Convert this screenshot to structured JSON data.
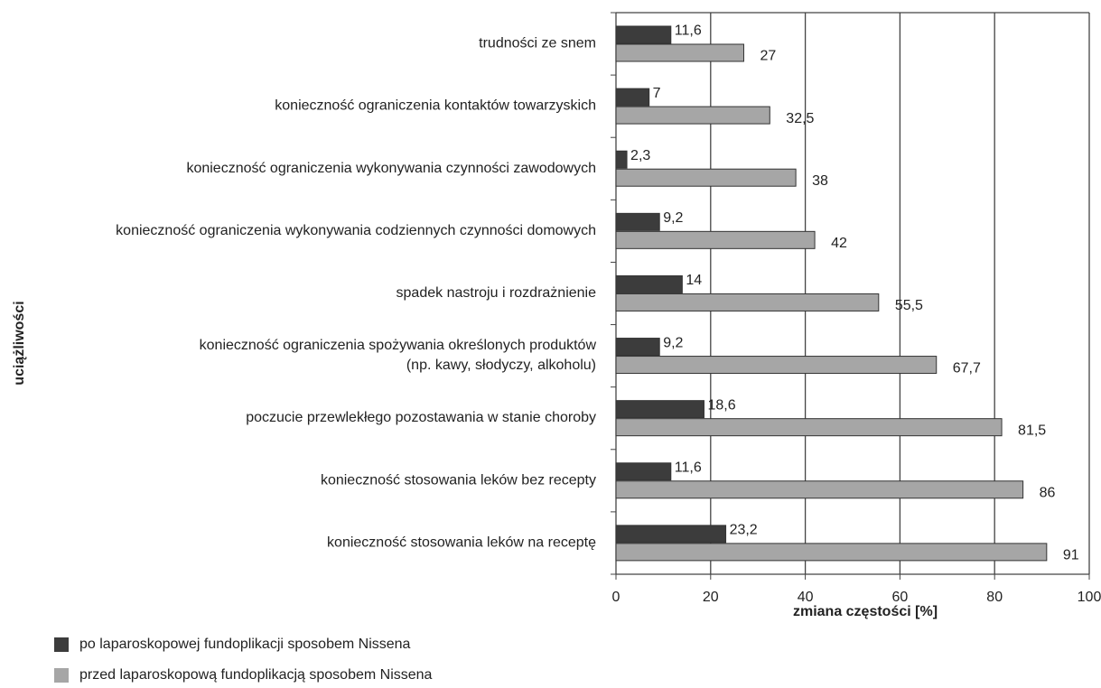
{
  "chart_data": {
    "type": "bar",
    "orientation": "horizontal",
    "ylabel": "uciążliwości",
    "xlabel": "zmiana częstości [%]",
    "categories": [
      "trudności ze snem",
      "konieczność ograniczenia kontaktów towarzyskich",
      "konieczność ograniczenia wykonywania czynności zawodowych",
      "konieczność ograniczenia wykonywania codziennych czynności domowych",
      "spadek nastroju i rozdrażnienie",
      "konieczność ograniczenia spożywania określonych produktów\n(np. kawy, słodyczy, alkoholu)",
      "poczucie przewlekłego pozostawania w stanie choroby",
      "konieczność stosowania leków bez recepty",
      "konieczność stosowania leków na receptę"
    ],
    "series": [
      {
        "name": "po laparoskopowej fundoplikacji sposobem Nissena",
        "color": "#3c3c3c",
        "values": [
          11.6,
          7,
          2.3,
          9.2,
          14,
          9.2,
          18.6,
          11.6,
          23.2
        ],
        "value_labels": [
          "11,6",
          "7",
          "2,3",
          "9,2",
          "14",
          "9,2",
          "18,6",
          "11,6",
          "23,2"
        ]
      },
      {
        "name": "przed laparoskopową fundoplikacją sposobem Nissena",
        "color": "#a6a6a6",
        "values": [
          27,
          32.5,
          38,
          42,
          55.5,
          67.7,
          81.5,
          86,
          91
        ],
        "value_labels": [
          "27",
          "32,5",
          "38",
          "42",
          "55,5",
          "67,7",
          "81,5",
          "86",
          "91"
        ]
      }
    ],
    "xlim": [
      0,
      100
    ],
    "xticks": [
      0,
      20,
      40,
      60,
      80,
      100
    ],
    "grid": true
  }
}
